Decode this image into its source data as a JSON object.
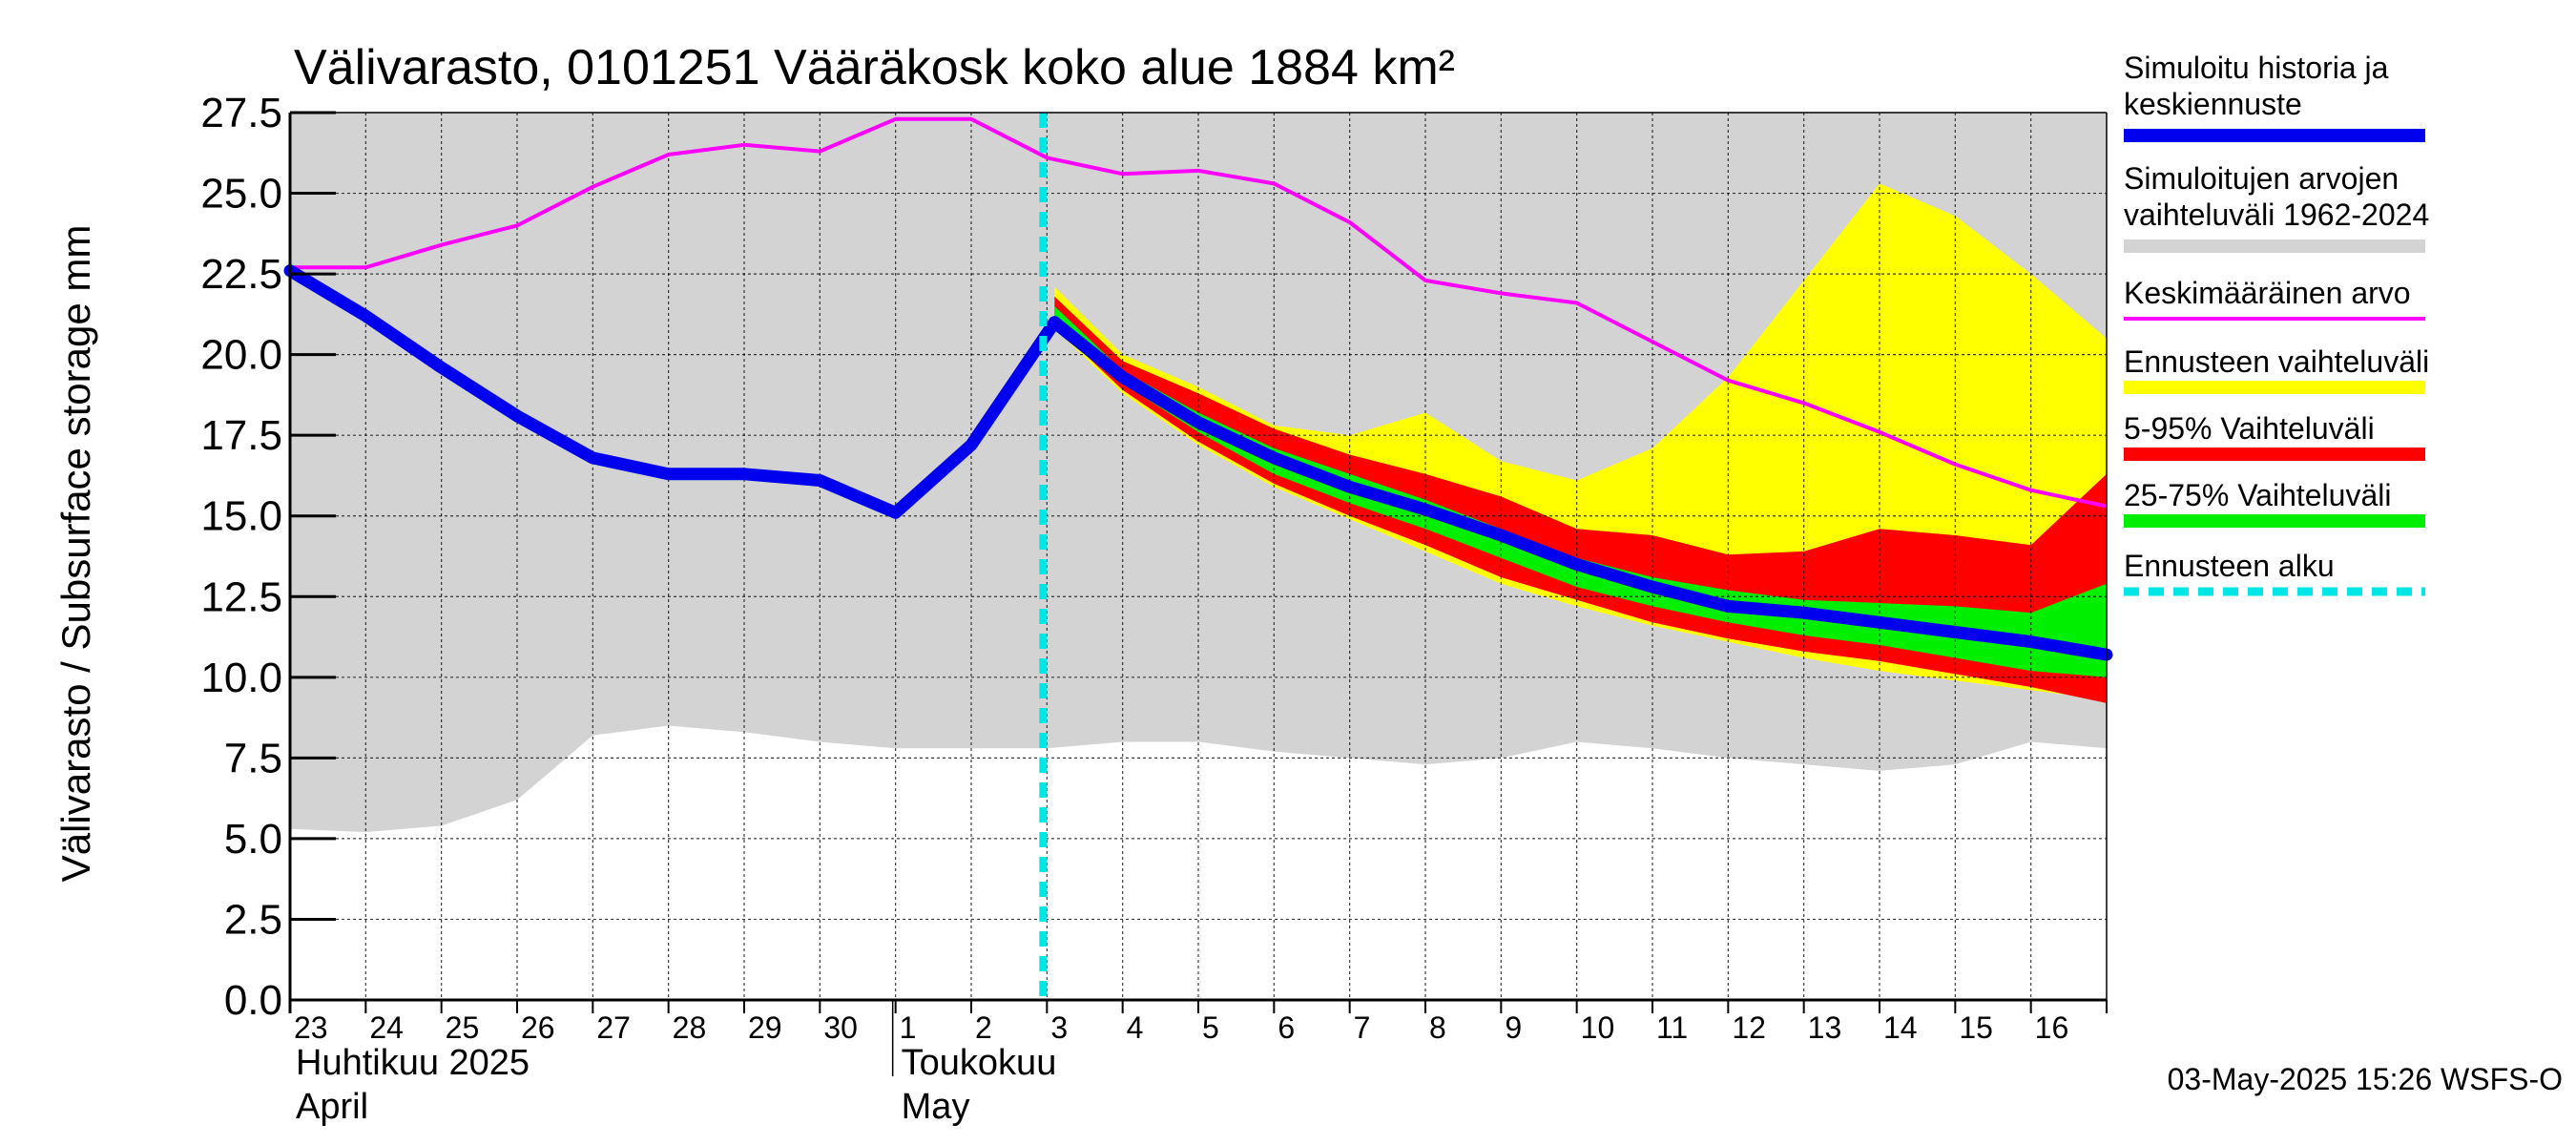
{
  "chart_data": {
    "type": "area",
    "title": "Välivarasto, 0101251 Vääräkosk koko alue 1884 km²",
    "ylabel": "Välivarasto / Subsurface storage  mm",
    "ylim": [
      0,
      27.5
    ],
    "yticks": [
      "0.0",
      "2.5",
      "5.0",
      "7.5",
      "10.0",
      "12.5",
      "15.0",
      "17.5",
      "20.0",
      "22.5",
      "25.0",
      "27.5"
    ],
    "x_days": [
      "23",
      "24",
      "25",
      "26",
      "27",
      "28",
      "29",
      "30",
      "1",
      "2",
      "3",
      "4",
      "5",
      "6",
      "7",
      "8",
      "9",
      "10",
      "11",
      "12",
      "13",
      "14",
      "15",
      "16"
    ],
    "x_months": [
      {
        "line1": "Huhtikuu  2025",
        "line2": "April"
      },
      {
        "line1": "Toukokuu",
        "line2": "May"
      }
    ],
    "forecast_start_index": 10,
    "grid": true,
    "colors": {
      "history": "#0000ee",
      "range": "#d3d3d3",
      "mean": "#ff00ff",
      "forecast_range": "#ffff00",
      "p5_95": "#ff0000",
      "p25_75": "#00ee00",
      "forecast_start": "#00e5e5"
    },
    "historical_range": {
      "x": [
        0,
        1,
        2,
        3,
        4,
        5,
        6,
        7,
        8,
        9,
        10,
        11,
        12,
        13,
        14,
        15,
        16,
        17,
        18,
        19,
        20,
        21,
        22,
        23,
        24
      ],
      "low": [
        5.3,
        5.2,
        5.4,
        6.2,
        8.2,
        8.5,
        8.3,
        8.0,
        7.8,
        7.8,
        7.8,
        8.0,
        8.0,
        7.7,
        7.5,
        7.3,
        7.5,
        8.0,
        7.8,
        7.5,
        7.3,
        7.1,
        7.3,
        8.0,
        7.8
      ],
      "high": [
        27.5,
        27.5,
        27.5,
        27.5,
        27.5,
        27.5,
        27.5,
        27.5,
        27.5,
        27.5,
        27.5,
        27.5,
        27.5,
        27.5,
        27.5,
        27.5,
        27.5,
        27.5,
        27.5,
        27.5,
        27.5,
        27.5,
        27.5,
        27.5,
        27.5
      ]
    },
    "mean": {
      "x": [
        0,
        1,
        2,
        3,
        4,
        5,
        6,
        7,
        8,
        9,
        10,
        11,
        12,
        13,
        14,
        15,
        16,
        17,
        18,
        19,
        20,
        21,
        22,
        23,
        24
      ],
      "values": [
        22.7,
        22.7,
        23.4,
        24.0,
        25.2,
        26.2,
        26.5,
        26.3,
        27.3,
        27.3,
        26.1,
        25.6,
        25.7,
        25.3,
        24.1,
        22.3,
        21.9,
        21.6,
        20.4,
        19.2,
        18.5,
        17.6,
        16.6,
        15.8,
        15.3
      ]
    },
    "history": {
      "x": [
        0,
        1,
        2,
        3,
        4,
        5,
        6,
        7,
        8,
        9,
        10.1
      ],
      "values": [
        22.6,
        21.2,
        19.6,
        18.1,
        16.8,
        16.3,
        16.3,
        16.1,
        15.1,
        17.2,
        21.0
      ]
    },
    "forecast": {
      "x": [
        10.1,
        11,
        12,
        13,
        14,
        15,
        16,
        17,
        18,
        19,
        20,
        21,
        22,
        23,
        24
      ],
      "min": [
        20.8,
        18.8,
        17.2,
        15.9,
        14.9,
        13.9,
        12.9,
        12.2,
        11.6,
        11.1,
        10.6,
        10.2,
        9.9,
        9.6,
        9.3
      ],
      "max": [
        22.1,
        20.0,
        19.0,
        17.8,
        17.5,
        18.2,
        16.7,
        16.1,
        17.1,
        19.3,
        22.3,
        25.3,
        24.3,
        22.5,
        20.5
      ],
      "p5": [
        20.9,
        18.9,
        17.3,
        16.0,
        15.0,
        14.1,
        13.1,
        12.4,
        11.7,
        11.2,
        10.8,
        10.5,
        10.1,
        9.7,
        9.2
      ],
      "p95": [
        21.8,
        19.8,
        18.8,
        17.7,
        16.9,
        16.3,
        15.6,
        14.6,
        14.4,
        13.8,
        13.9,
        14.6,
        14.4,
        14.1,
        16.3
      ],
      "p25": [
        21.0,
        19.1,
        17.6,
        16.3,
        15.4,
        14.6,
        13.7,
        12.8,
        12.2,
        11.7,
        11.3,
        11.0,
        10.6,
        10.2,
        10.0
      ],
      "p75": [
        21.5,
        19.5,
        18.2,
        17.1,
        16.3,
        15.5,
        14.6,
        13.7,
        13.1,
        12.7,
        12.4,
        12.3,
        12.2,
        12.0,
        12.9
      ],
      "median": [
        21.0,
        19.3,
        17.9,
        16.8,
        15.9,
        15.2,
        14.4,
        13.5,
        12.8,
        12.2,
        12.0,
        11.7,
        11.4,
        11.1,
        10.7
      ]
    },
    "legend": [
      {
        "key": "history",
        "label1": "Simuloitu historia ja",
        "label2": "keskiennuste",
        "style": "thick"
      },
      {
        "key": "range",
        "label1": "Simuloitujen arvojen",
        "label2": "vaihteluväli 1962-2024",
        "style": "thick"
      },
      {
        "key": "mean",
        "label1": "Keskimääräinen arvo",
        "label2": "",
        "style": "thin"
      },
      {
        "key": "forecast_range",
        "label1": "Ennusteen vaihteluväli",
        "label2": "",
        "style": "thick"
      },
      {
        "key": "p5_95",
        "label1": "5-95% Vaihteluväli",
        "label2": "",
        "style": "thick"
      },
      {
        "key": "p25_75",
        "label1": "25-75% Vaihteluväli",
        "label2": "",
        "style": "thick"
      },
      {
        "key": "forecast_start",
        "label1": "Ennusteen alku",
        "label2": "",
        "style": "dashed"
      }
    ],
    "footer": "03-May-2025 15:26 WSFS-O"
  }
}
